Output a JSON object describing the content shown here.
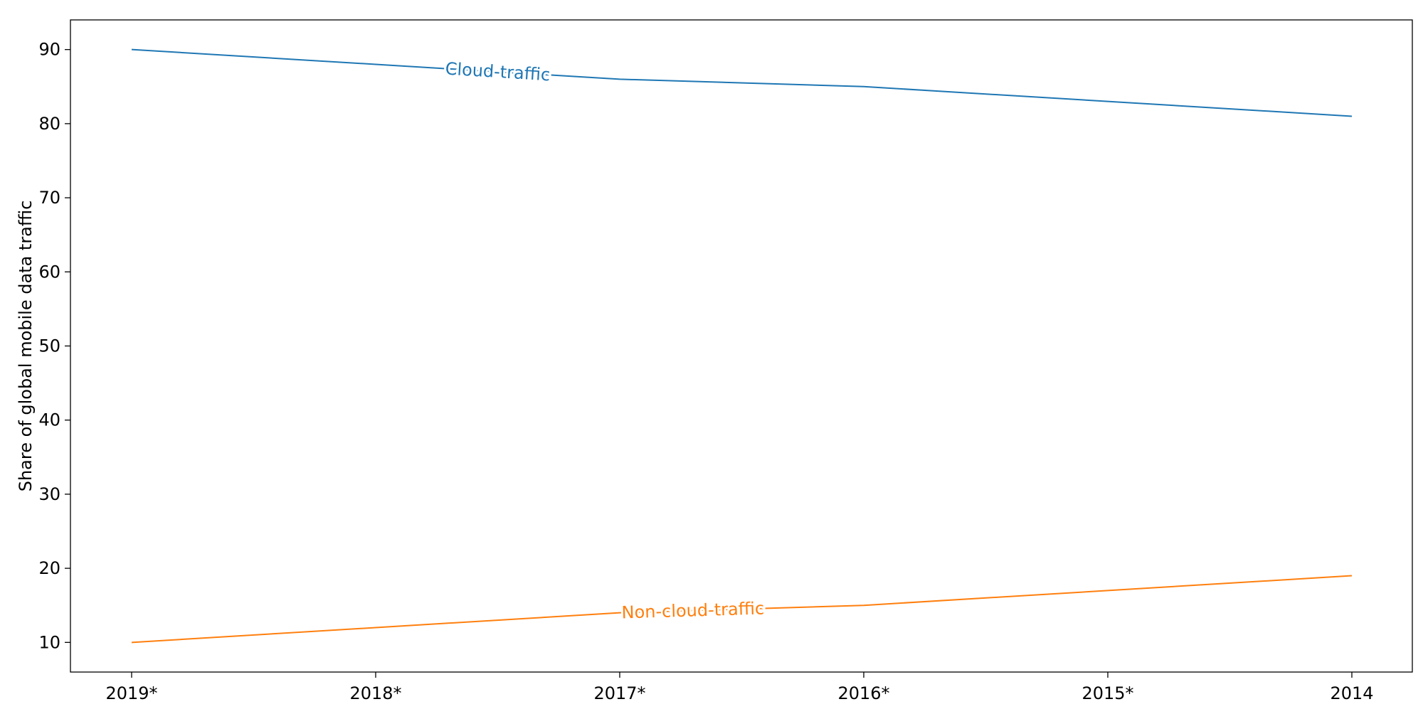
{
  "chart_data": {
    "type": "line",
    "categories": [
      "2019*",
      "2018*",
      "2017*",
      "2016*",
      "2015*",
      "2014"
    ],
    "series": [
      {
        "name": "Cloud-traffic",
        "color": "#1f77b4",
        "values": [
          90,
          88,
          86,
          85,
          83,
          81
        ]
      },
      {
        "name": "Non-cloud-traffic",
        "color": "#ff7f0e",
        "values": [
          10,
          12,
          14,
          15,
          17,
          19
        ]
      }
    ],
    "title": "",
    "xlabel": "",
    "ylabel": "Share of global mobile data traffic",
    "ylim": [
      6,
      94
    ],
    "yticks": [
      10,
      20,
      30,
      40,
      50,
      60,
      70,
      80,
      90
    ],
    "grid": false,
    "legend": "inline labels"
  }
}
